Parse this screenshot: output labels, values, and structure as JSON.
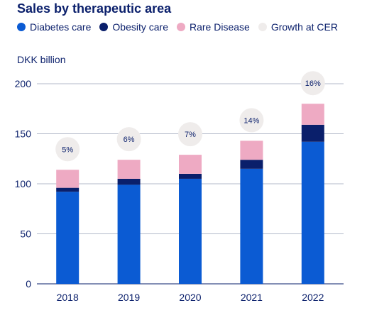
{
  "chart_data": {
    "type": "bar",
    "stacked": true,
    "title": "Sales by therapeutic area",
    "ylabel": "DKK billion",
    "ylim": [
      0,
      200
    ],
    "yticks": [
      0,
      50,
      100,
      150,
      200
    ],
    "grid": true,
    "legend_position": "top-left",
    "categories": [
      "2018",
      "2019",
      "2020",
      "2021",
      "2022"
    ],
    "series": [
      {
        "name": "Diabetes care",
        "color": "#0b5bd3",
        "values": [
          92,
          99,
          105,
          115,
          142
        ]
      },
      {
        "name": "Obesity care",
        "color": "#0a1f6b",
        "values": [
          4,
          6,
          5,
          9,
          17
        ]
      },
      {
        "name": "Rare Disease",
        "color": "#eeaac3",
        "values": [
          18,
          19,
          19,
          19,
          21
        ]
      }
    ],
    "growth": {
      "name": "Growth at CER",
      "color": "#efeceb",
      "labels": [
        "5%",
        "6%",
        "7%",
        "14%",
        "16%"
      ]
    }
  }
}
